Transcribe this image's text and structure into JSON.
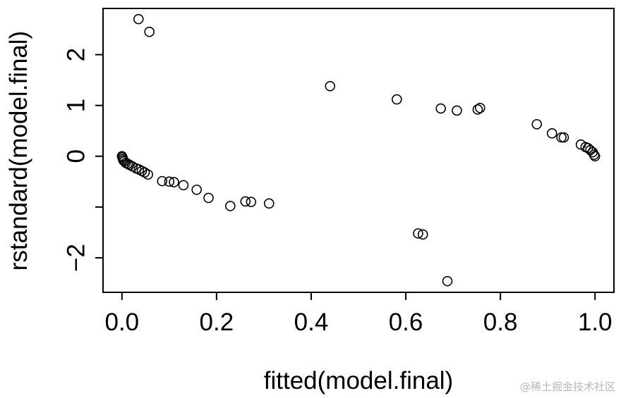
{
  "chart_data": {
    "type": "scatter",
    "title": "",
    "xlabel": "fitted(model.final)",
    "ylabel": "rstandard(model.final)",
    "xlim": [
      -0.04,
      1.04
    ],
    "ylim": [
      -2.68,
      2.91
    ],
    "x_ticks": [
      0.0,
      0.2,
      0.4,
      0.6,
      0.8,
      1.0
    ],
    "x_tick_labels": [
      "0.0",
      "0.2",
      "0.4",
      "0.6",
      "0.8",
      "1.0"
    ],
    "y_ticks": [
      -2,
      0,
      1,
      2
    ],
    "y_tick_labels": [
      "−2",
      "0",
      "1",
      "2"
    ],
    "y_minor_ticks": [
      -1
    ],
    "grid": false,
    "marker": "open-circle",
    "points": [
      {
        "x": 0.035,
        "y": 2.7
      },
      {
        "x": 0.058,
        "y": 2.45
      },
      {
        "x": 0.0,
        "y": 0.0
      },
      {
        "x": 0.001,
        "y": -0.02
      },
      {
        "x": 0.002,
        "y": -0.05
      },
      {
        "x": 0.003,
        "y": -0.08
      },
      {
        "x": 0.005,
        "y": -0.1
      },
      {
        "x": 0.008,
        "y": -0.13
      },
      {
        "x": 0.012,
        "y": -0.15
      },
      {
        "x": 0.016,
        "y": -0.17
      },
      {
        "x": 0.022,
        "y": -0.2
      },
      {
        "x": 0.03,
        "y": -0.24
      },
      {
        "x": 0.036,
        "y": -0.26
      },
      {
        "x": 0.042,
        "y": -0.29
      },
      {
        "x": 0.048,
        "y": -0.32
      },
      {
        "x": 0.055,
        "y": -0.36
      },
      {
        "x": 0.085,
        "y": -0.49
      },
      {
        "x": 0.1,
        "y": -0.5
      },
      {
        "x": 0.11,
        "y": -0.51
      },
      {
        "x": 0.13,
        "y": -0.57
      },
      {
        "x": 0.158,
        "y": -0.66
      },
      {
        "x": 0.183,
        "y": -0.82
      },
      {
        "x": 0.229,
        "y": -0.98
      },
      {
        "x": 0.261,
        "y": -0.89
      },
      {
        "x": 0.273,
        "y": -0.9
      },
      {
        "x": 0.311,
        "y": -0.93
      },
      {
        "x": 0.44,
        "y": 1.38
      },
      {
        "x": 0.581,
        "y": 1.12
      },
      {
        "x": 0.626,
        "y": -1.52
      },
      {
        "x": 0.636,
        "y": -1.54
      },
      {
        "x": 0.674,
        "y": 0.94
      },
      {
        "x": 0.688,
        "y": -2.46
      },
      {
        "x": 0.708,
        "y": 0.9
      },
      {
        "x": 0.752,
        "y": 0.92
      },
      {
        "x": 0.757,
        "y": 0.95
      },
      {
        "x": 0.877,
        "y": 0.63
      },
      {
        "x": 0.909,
        "y": 0.45
      },
      {
        "x": 0.929,
        "y": 0.37
      },
      {
        "x": 0.934,
        "y": 0.37
      },
      {
        "x": 0.97,
        "y": 0.23
      },
      {
        "x": 0.98,
        "y": 0.18
      },
      {
        "x": 0.985,
        "y": 0.16
      },
      {
        "x": 0.99,
        "y": 0.12
      },
      {
        "x": 0.995,
        "y": 0.08
      },
      {
        "x": 0.998,
        "y": 0.03
      },
      {
        "x": 1.0,
        "y": 0.0
      }
    ]
  },
  "watermark": "@稀土掘金技术社区"
}
